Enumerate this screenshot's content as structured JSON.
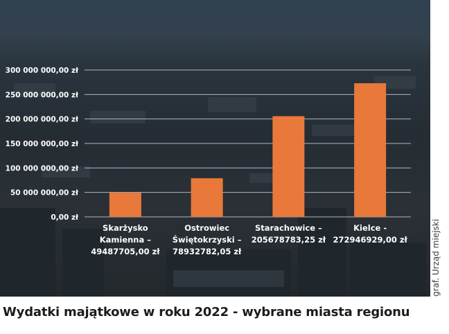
{
  "caption": "Wydatki majątkowe w roku 2022 - wybrane miasta regionu",
  "credit": "graf. Urząd miejski",
  "colors": {
    "bar": "#e8793a",
    "grid": "#c9ced3",
    "text": "#ffffff",
    "background": "#2a333b"
  },
  "chart_data": {
    "type": "bar",
    "title": "",
    "xlabel": "",
    "ylabel": "",
    "categories": [
      [
        "Skarżysko",
        "Kamienna –",
        "49487705,00 zł"
      ],
      [
        "Ostrowiec",
        "Świętokrzyski –",
        "78932782,05 zł"
      ],
      [
        "Starachowice –",
        "205678783,25 zł"
      ],
      [
        "Kielce -",
        "272946929,00 zł"
      ]
    ],
    "values": [
      49487705.0,
      78932782.05,
      205678783.25,
      272946929.0
    ],
    "ylim": [
      0,
      300000000
    ],
    "yticks": [
      0,
      50000000,
      100000000,
      150000000,
      200000000,
      250000000,
      300000000
    ],
    "ytick_labels": [
      "0,00 zł",
      "50 000 000,00 zł",
      "100 000 000,00 zł",
      "150 000 000,00 zł",
      "200 000 000,00 zł",
      "250 000 000,00 zł",
      "300 000 000,00 zł"
    ],
    "grid": true,
    "legend": "none"
  }
}
